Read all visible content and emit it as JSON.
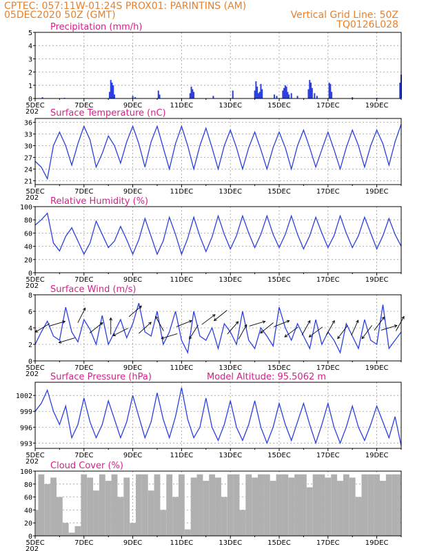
{
  "header": {
    "line1_left": "CPTEC:  057:11W-01:24S  PROX01: PARINTINS (AM)",
    "line2_left": "05DEC2020 50Z (GMT)",
    "line2_right": "Vertical Grid Line: 50Z",
    "line3_right": "TQ0126L028"
  },
  "colors": {
    "series": "#2a3fe0",
    "title": "#d6208a",
    "header": "#e8802a",
    "cloud": "#b0b0b0"
  },
  "x_axis": {
    "start_day": 5,
    "end_day": 20,
    "tick_labels": [
      "5DEC",
      "7DEC",
      "9DEC",
      "11DEC",
      "13DEC",
      "15DEC",
      "17DEC",
      "19DEC"
    ],
    "tick_days": [
      5,
      7,
      9,
      11,
      13,
      15,
      17,
      19
    ],
    "partial_label": "202"
  },
  "chart_data": [
    {
      "id": "precip",
      "type": "bar",
      "title": "Precipitation (mm/h)",
      "ylim": [
        0,
        5
      ],
      "yticks": [
        0,
        1,
        2,
        3,
        4,
        5
      ],
      "x": [
        5.3,
        6.2,
        8.05,
        8.1,
        8.15,
        8.2,
        8.25,
        9.0,
        9.1,
        10.05,
        10.1,
        11.35,
        11.4,
        11.45,
        11.5,
        12.3,
        13.1,
        14.0,
        14.05,
        14.1,
        14.15,
        14.2,
        14.25,
        14.3,
        14.8,
        14.9,
        15.15,
        15.2,
        15.25,
        15.3,
        15.35,
        15.4,
        15.5,
        15.75,
        16.2,
        16.25,
        16.3,
        16.35,
        16.45,
        16.55,
        17.05,
        17.1,
        17.15,
        18.0,
        19.0,
        19.95,
        20.0
      ],
      "values": [
        0.1,
        0.05,
        0.5,
        1.4,
        1.2,
        1.0,
        0.3,
        0.2,
        0.1,
        0.6,
        0.3,
        0.4,
        0.9,
        0.7,
        0.5,
        0.2,
        0.6,
        0.6,
        1.3,
        0.9,
        0.4,
        0.5,
        1.1,
        0.7,
        0.3,
        0.2,
        0.6,
        0.8,
        1.0,
        0.9,
        0.5,
        0.3,
        0.4,
        0.2,
        0.7,
        1.4,
        1.2,
        0.8,
        0.4,
        0.2,
        1.2,
        1.1,
        0.5,
        0.1,
        0.05,
        1.2,
        1.8
      ]
    },
    {
      "id": "temp",
      "type": "line",
      "title": "Surface Temperature (nC)",
      "ylim": [
        20,
        37
      ],
      "yticks": [
        21,
        24,
        27,
        30,
        33,
        36
      ],
      "x": [
        5.0,
        5.25,
        5.5,
        5.75,
        6.0,
        6.25,
        6.5,
        6.75,
        7.0,
        7.25,
        7.5,
        7.75,
        8.0,
        8.25,
        8.5,
        8.75,
        9.0,
        9.25,
        9.5,
        9.75,
        10.0,
        10.25,
        10.5,
        10.75,
        11.0,
        11.25,
        11.5,
        11.75,
        12.0,
        12.25,
        12.5,
        12.75,
        13.0,
        13.25,
        13.5,
        13.75,
        14.0,
        14.25,
        14.5,
        14.75,
        15.0,
        15.25,
        15.5,
        15.75,
        16.0,
        16.25,
        16.5,
        16.75,
        17.0,
        17.25,
        17.5,
        17.75,
        18.0,
        18.25,
        18.5,
        18.75,
        19.0,
        19.25,
        19.5,
        19.75,
        20.0
      ],
      "values": [
        26.0,
        24.5,
        21.5,
        30.0,
        33.5,
        30.0,
        25.0,
        30.5,
        35.0,
        31.5,
        24.5,
        28.0,
        32.5,
        30.0,
        25.5,
        31.0,
        35.0,
        30.5,
        24.5,
        31.0,
        35.0,
        29.5,
        24.0,
        30.5,
        35.0,
        30.0,
        24.0,
        30.0,
        34.5,
        29.5,
        24.0,
        30.0,
        34.0,
        29.5,
        24.0,
        29.5,
        33.5,
        29.0,
        24.0,
        29.5,
        33.5,
        29.5,
        24.0,
        30.0,
        34.0,
        29.5,
        24.5,
        29.0,
        33.5,
        29.0,
        24.0,
        29.5,
        34.0,
        30.0,
        24.5,
        30.0,
        34.0,
        30.5,
        25.0,
        31.0,
        35.5
      ]
    },
    {
      "id": "rh",
      "type": "line",
      "title": "Relative Humidity (%)",
      "ylim": [
        0,
        100
      ],
      "yticks": [
        0,
        20,
        40,
        60,
        80,
        100
      ],
      "x": [
        5.0,
        5.25,
        5.5,
        5.75,
        6.0,
        6.25,
        6.5,
        6.75,
        7.0,
        7.25,
        7.5,
        7.75,
        8.0,
        8.25,
        8.5,
        8.75,
        9.0,
        9.25,
        9.5,
        9.75,
        10.0,
        10.25,
        10.5,
        10.75,
        11.0,
        11.25,
        11.5,
        11.75,
        12.0,
        12.25,
        12.5,
        12.75,
        13.0,
        13.25,
        13.5,
        13.75,
        14.0,
        14.25,
        14.5,
        14.75,
        15.0,
        15.25,
        15.5,
        15.75,
        16.0,
        16.25,
        16.5,
        16.75,
        17.0,
        17.25,
        17.5,
        17.75,
        18.0,
        18.25,
        18.5,
        18.75,
        19.0,
        19.25,
        19.5,
        19.75,
        20.0
      ],
      "values": [
        72,
        80,
        90,
        45,
        33,
        55,
        68,
        48,
        28,
        45,
        78,
        58,
        38,
        48,
        70,
        50,
        28,
        50,
        82,
        55,
        28,
        48,
        84,
        58,
        28,
        52,
        84,
        55,
        32,
        54,
        86,
        58,
        36,
        56,
        86,
        60,
        38,
        58,
        86,
        58,
        38,
        58,
        86,
        58,
        36,
        56,
        84,
        60,
        38,
        56,
        86,
        60,
        38,
        56,
        84,
        60,
        36,
        56,
        82,
        58,
        40
      ]
    },
    {
      "id": "wind",
      "type": "line",
      "title": "Surface Wind (m/s)",
      "ylim": [
        0,
        8
      ],
      "yticks": [
        0,
        2,
        4,
        6,
        8
      ],
      "x": [
        5.0,
        5.25,
        5.5,
        5.75,
        6.0,
        6.25,
        6.5,
        6.75,
        7.0,
        7.25,
        7.5,
        7.75,
        8.0,
        8.25,
        8.5,
        8.75,
        9.0,
        9.25,
        9.5,
        9.75,
        10.0,
        10.25,
        10.5,
        10.75,
        11.0,
        11.25,
        11.5,
        11.75,
        12.0,
        12.25,
        12.5,
        12.75,
        13.0,
        13.25,
        13.5,
        13.75,
        14.0,
        14.25,
        14.5,
        14.75,
        15.0,
        15.25,
        15.5,
        15.75,
        16.0,
        16.25,
        16.5,
        16.75,
        17.0,
        17.25,
        17.5,
        17.75,
        18.0,
        18.25,
        18.5,
        18.75,
        19.0,
        19.25,
        19.5,
        19.75,
        20.0
      ],
      "values": [
        2.0,
        3.5,
        4.8,
        3.0,
        2.5,
        6.5,
        3.5,
        2.3,
        5.0,
        3.8,
        2.0,
        5.5,
        2.0,
        3.5,
        5.0,
        2.8,
        4.5,
        7.0,
        3.5,
        3.0,
        6.0,
        2.0,
        3.5,
        6.0,
        2.5,
        1.0,
        6.0,
        3.0,
        2.5,
        4.0,
        1.5,
        4.5,
        3.5,
        2.0,
        6.0,
        2.5,
        1.5,
        4.0,
        3.0,
        1.8,
        6.5,
        4.0,
        2.5,
        4.5,
        3.0,
        1.5,
        5.0,
        2.0,
        3.5,
        2.5,
        1.0,
        4.5,
        3.0,
        1.5,
        5.0,
        2.5,
        2.0,
        6.8,
        1.5,
        2.5,
        3.5
      ],
      "arrows": {
        "day": [
          5.3,
          5.9,
          6.3,
          6.9,
          7.5,
          8.1,
          8.5,
          9.1,
          9.5,
          10.1,
          10.5,
          11.1,
          11.5,
          12.1,
          12.6,
          13.1,
          13.5,
          14.1,
          14.5,
          15.1,
          15.5,
          16.1,
          16.5,
          17.1,
          17.6,
          18.1,
          18.6,
          19.1,
          19.5,
          19.95
        ],
        "speed": [
          4.0,
          4.5,
          2.5,
          5.5,
          4.0,
          4.2,
          3.5,
          6.0,
          4.0,
          4.5,
          3.0,
          4.5,
          3.5,
          5.0,
          5.5,
          4.0,
          3.5,
          4.5,
          4.0,
          4.5,
          3.5,
          4.0,
          3.5,
          4.0,
          3.5,
          4.0,
          3.5,
          4.5,
          4.0,
          4.5
        ],
        "dx": [
          -1,
          1,
          -1,
          0.5,
          1,
          0,
          -1,
          0.7,
          1,
          -0.5,
          -1,
          1,
          -0.5,
          0.8,
          -1,
          0.7,
          0.5,
          1,
          -1,
          1,
          -0.8,
          0.5,
          -0.8,
          0.5,
          -0.6,
          0.4,
          -0.6,
          0.6,
          1,
          0.5
        ],
        "dy": [
          -0.6,
          0.3,
          -0.3,
          1,
          0.8,
          1,
          -0.5,
          0.6,
          0.9,
          0.9,
          -0.3,
          0.4,
          -0.8,
          0.6,
          -0.8,
          0.8,
          0.9,
          0.3,
          -0.8,
          0.4,
          -0.6,
          0.9,
          -0.6,
          0.9,
          -0.8,
          0.9,
          -0.8,
          0.8,
          0.3,
          0.9
        ]
      }
    },
    {
      "id": "pres",
      "type": "line",
      "title": "Surface Pressure (hPa)",
      "annotation": "Model Altitude: 95.5062 m",
      "ylim": [
        992,
        1004.5
      ],
      "yticks": [
        993,
        996,
        999,
        1002
      ],
      "x": [
        5.0,
        5.25,
        5.5,
        5.75,
        6.0,
        6.25,
        6.5,
        6.75,
        7.0,
        7.25,
        7.5,
        7.75,
        8.0,
        8.25,
        8.5,
        8.75,
        9.0,
        9.25,
        9.5,
        9.75,
        10.0,
        10.25,
        10.5,
        10.75,
        11.0,
        11.25,
        11.5,
        11.75,
        12.0,
        12.25,
        12.5,
        12.75,
        13.0,
        13.25,
        13.5,
        13.75,
        14.0,
        14.25,
        14.5,
        14.75,
        15.0,
        15.25,
        15.5,
        15.75,
        16.0,
        16.25,
        16.5,
        16.75,
        17.0,
        17.25,
        17.5,
        17.75,
        18.0,
        18.25,
        18.5,
        18.75,
        19.0,
        19.25,
        19.5,
        19.75,
        20.0
      ],
      "values": [
        999.0,
        1000.5,
        1003.0,
        999.0,
        996.5,
        1000.0,
        994.0,
        996.5,
        1001.5,
        997.0,
        994.0,
        996.5,
        1001.0,
        997.5,
        994.0,
        997.0,
        1002.0,
        998.0,
        994.0,
        997.0,
        1002.5,
        997.5,
        994.0,
        998.0,
        1003.5,
        997.5,
        994.0,
        996.0,
        1001.5,
        996.0,
        993.5,
        996.5,
        1001.0,
        996.0,
        993.5,
        996.5,
        1001.0,
        996.0,
        993.0,
        996.0,
        1000.5,
        996.5,
        993.5,
        997.0,
        1000.5,
        996.5,
        993.0,
        996.5,
        1000.5,
        996.0,
        993.0,
        996.0,
        1000.0,
        996.0,
        993.5,
        996.5,
        1000.0,
        997.0,
        994.0,
        998.0,
        992.5
      ]
    },
    {
      "id": "cloud",
      "type": "area",
      "title": "Cloud Cover (%)",
      "ylim": [
        0,
        100
      ],
      "yticks": [
        0,
        20,
        40,
        60,
        80,
        100
      ],
      "x": [
        5.0,
        5.25,
        5.5,
        5.75,
        6.0,
        6.25,
        6.5,
        6.75,
        7.0,
        7.25,
        7.5,
        7.75,
        8.0,
        8.25,
        8.5,
        8.75,
        9.0,
        9.25,
        9.5,
        9.75,
        10.0,
        10.25,
        10.5,
        10.75,
        11.0,
        11.25,
        11.5,
        11.75,
        12.0,
        12.25,
        12.5,
        12.75,
        13.0,
        13.25,
        13.5,
        13.75,
        14.0,
        14.25,
        14.5,
        14.75,
        15.0,
        15.25,
        15.5,
        15.75,
        16.0,
        16.25,
        16.5,
        16.75,
        17.0,
        17.25,
        17.5,
        17.75,
        18.0,
        18.25,
        18.5,
        18.75,
        19.0,
        19.25,
        19.5,
        19.75,
        20.0
      ],
      "values": [
        40,
        95,
        80,
        90,
        60,
        20,
        5,
        15,
        95,
        90,
        70,
        95,
        85,
        95,
        60,
        90,
        20,
        95,
        95,
        70,
        95,
        40,
        95,
        60,
        95,
        10,
        90,
        95,
        85,
        95,
        90,
        60,
        95,
        95,
        40,
        95,
        90,
        95,
        95,
        85,
        95,
        95,
        90,
        95,
        95,
        75,
        95,
        95,
        90,
        95,
        85,
        95,
        90,
        60,
        95,
        95,
        95,
        85,
        95,
        95,
        95
      ]
    }
  ]
}
